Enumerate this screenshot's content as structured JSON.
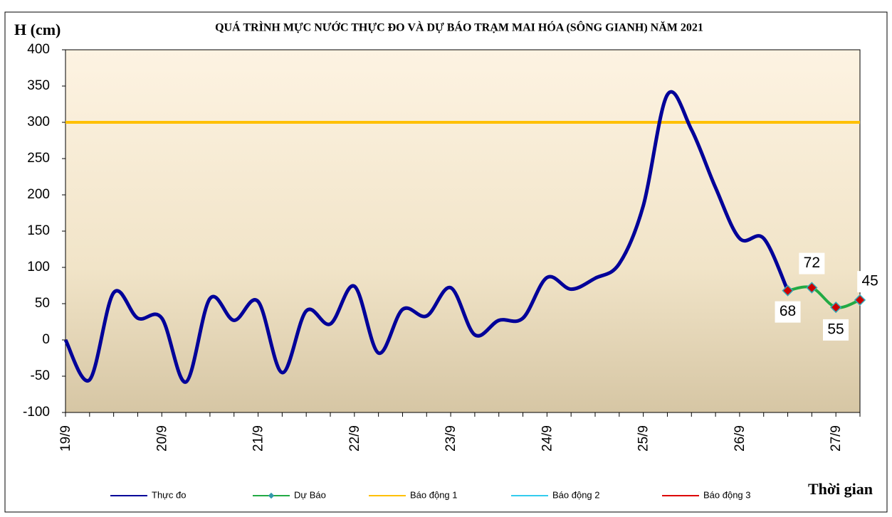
{
  "chart_data": {
    "type": "line",
    "title": "QUÁ TRÌNH MỰC NƯỚC THỰC ĐO VÀ DỰ BÁO TRẠM MAI HÓA (SÔNG GIANH) NĂM 2021",
    "y_label": "H (cm)",
    "x_label": "Thời gian",
    "categories": [
      "19/9",
      null,
      null,
      null,
      "20/9",
      null,
      null,
      null,
      "21/9",
      null,
      null,
      null,
      "22/9",
      null,
      null,
      null,
      "23/9",
      null,
      null,
      null,
      "24/9",
      null,
      null,
      null,
      "25/9",
      null,
      null,
      null,
      "26/9",
      null,
      null,
      null,
      "27/9",
      null
    ],
    "series": [
      {
        "name": "Thực đo",
        "color": "#000099",
        "values": [
          0,
          -55,
          65,
          30,
          30,
          -58,
          57,
          27,
          53,
          -45,
          40,
          22,
          74,
          -18,
          42,
          33,
          72,
          7,
          27,
          30,
          86,
          70,
          85,
          105,
          185,
          338,
          290,
          210,
          140,
          140,
          68,
          null,
          null,
          null
        ]
      },
      {
        "name": "Dự Báo",
        "color": "#22aa44",
        "values": [
          null,
          null,
          null,
          null,
          null,
          null,
          null,
          null,
          null,
          null,
          null,
          null,
          null,
          null,
          null,
          null,
          null,
          null,
          null,
          null,
          null,
          null,
          null,
          null,
          null,
          null,
          null,
          null,
          null,
          null,
          68,
          72,
          45,
          55
        ],
        "value_labels": [
          null,
          null,
          null,
          null,
          null,
          null,
          null,
          null,
          null,
          null,
          null,
          null,
          null,
          null,
          null,
          null,
          null,
          null,
          null,
          null,
          null,
          null,
          null,
          null,
          null,
          null,
          null,
          null,
          null,
          null,
          "68",
          "72",
          "45",
          "55"
        ]
      }
    ],
    "alarms": [
      {
        "name": "Báo động  1",
        "color": "#ffc000",
        "value": 300
      },
      {
        "name": "Báo động  2",
        "color": "#33ccee"
      },
      {
        "name": "Báo động  3",
        "color": "#dd0000"
      }
    ],
    "ylim": [
      -100,
      400
    ],
    "yticks": [
      -100,
      -50,
      0,
      50,
      100,
      150,
      200,
      250,
      300,
      350,
      400
    ]
  }
}
